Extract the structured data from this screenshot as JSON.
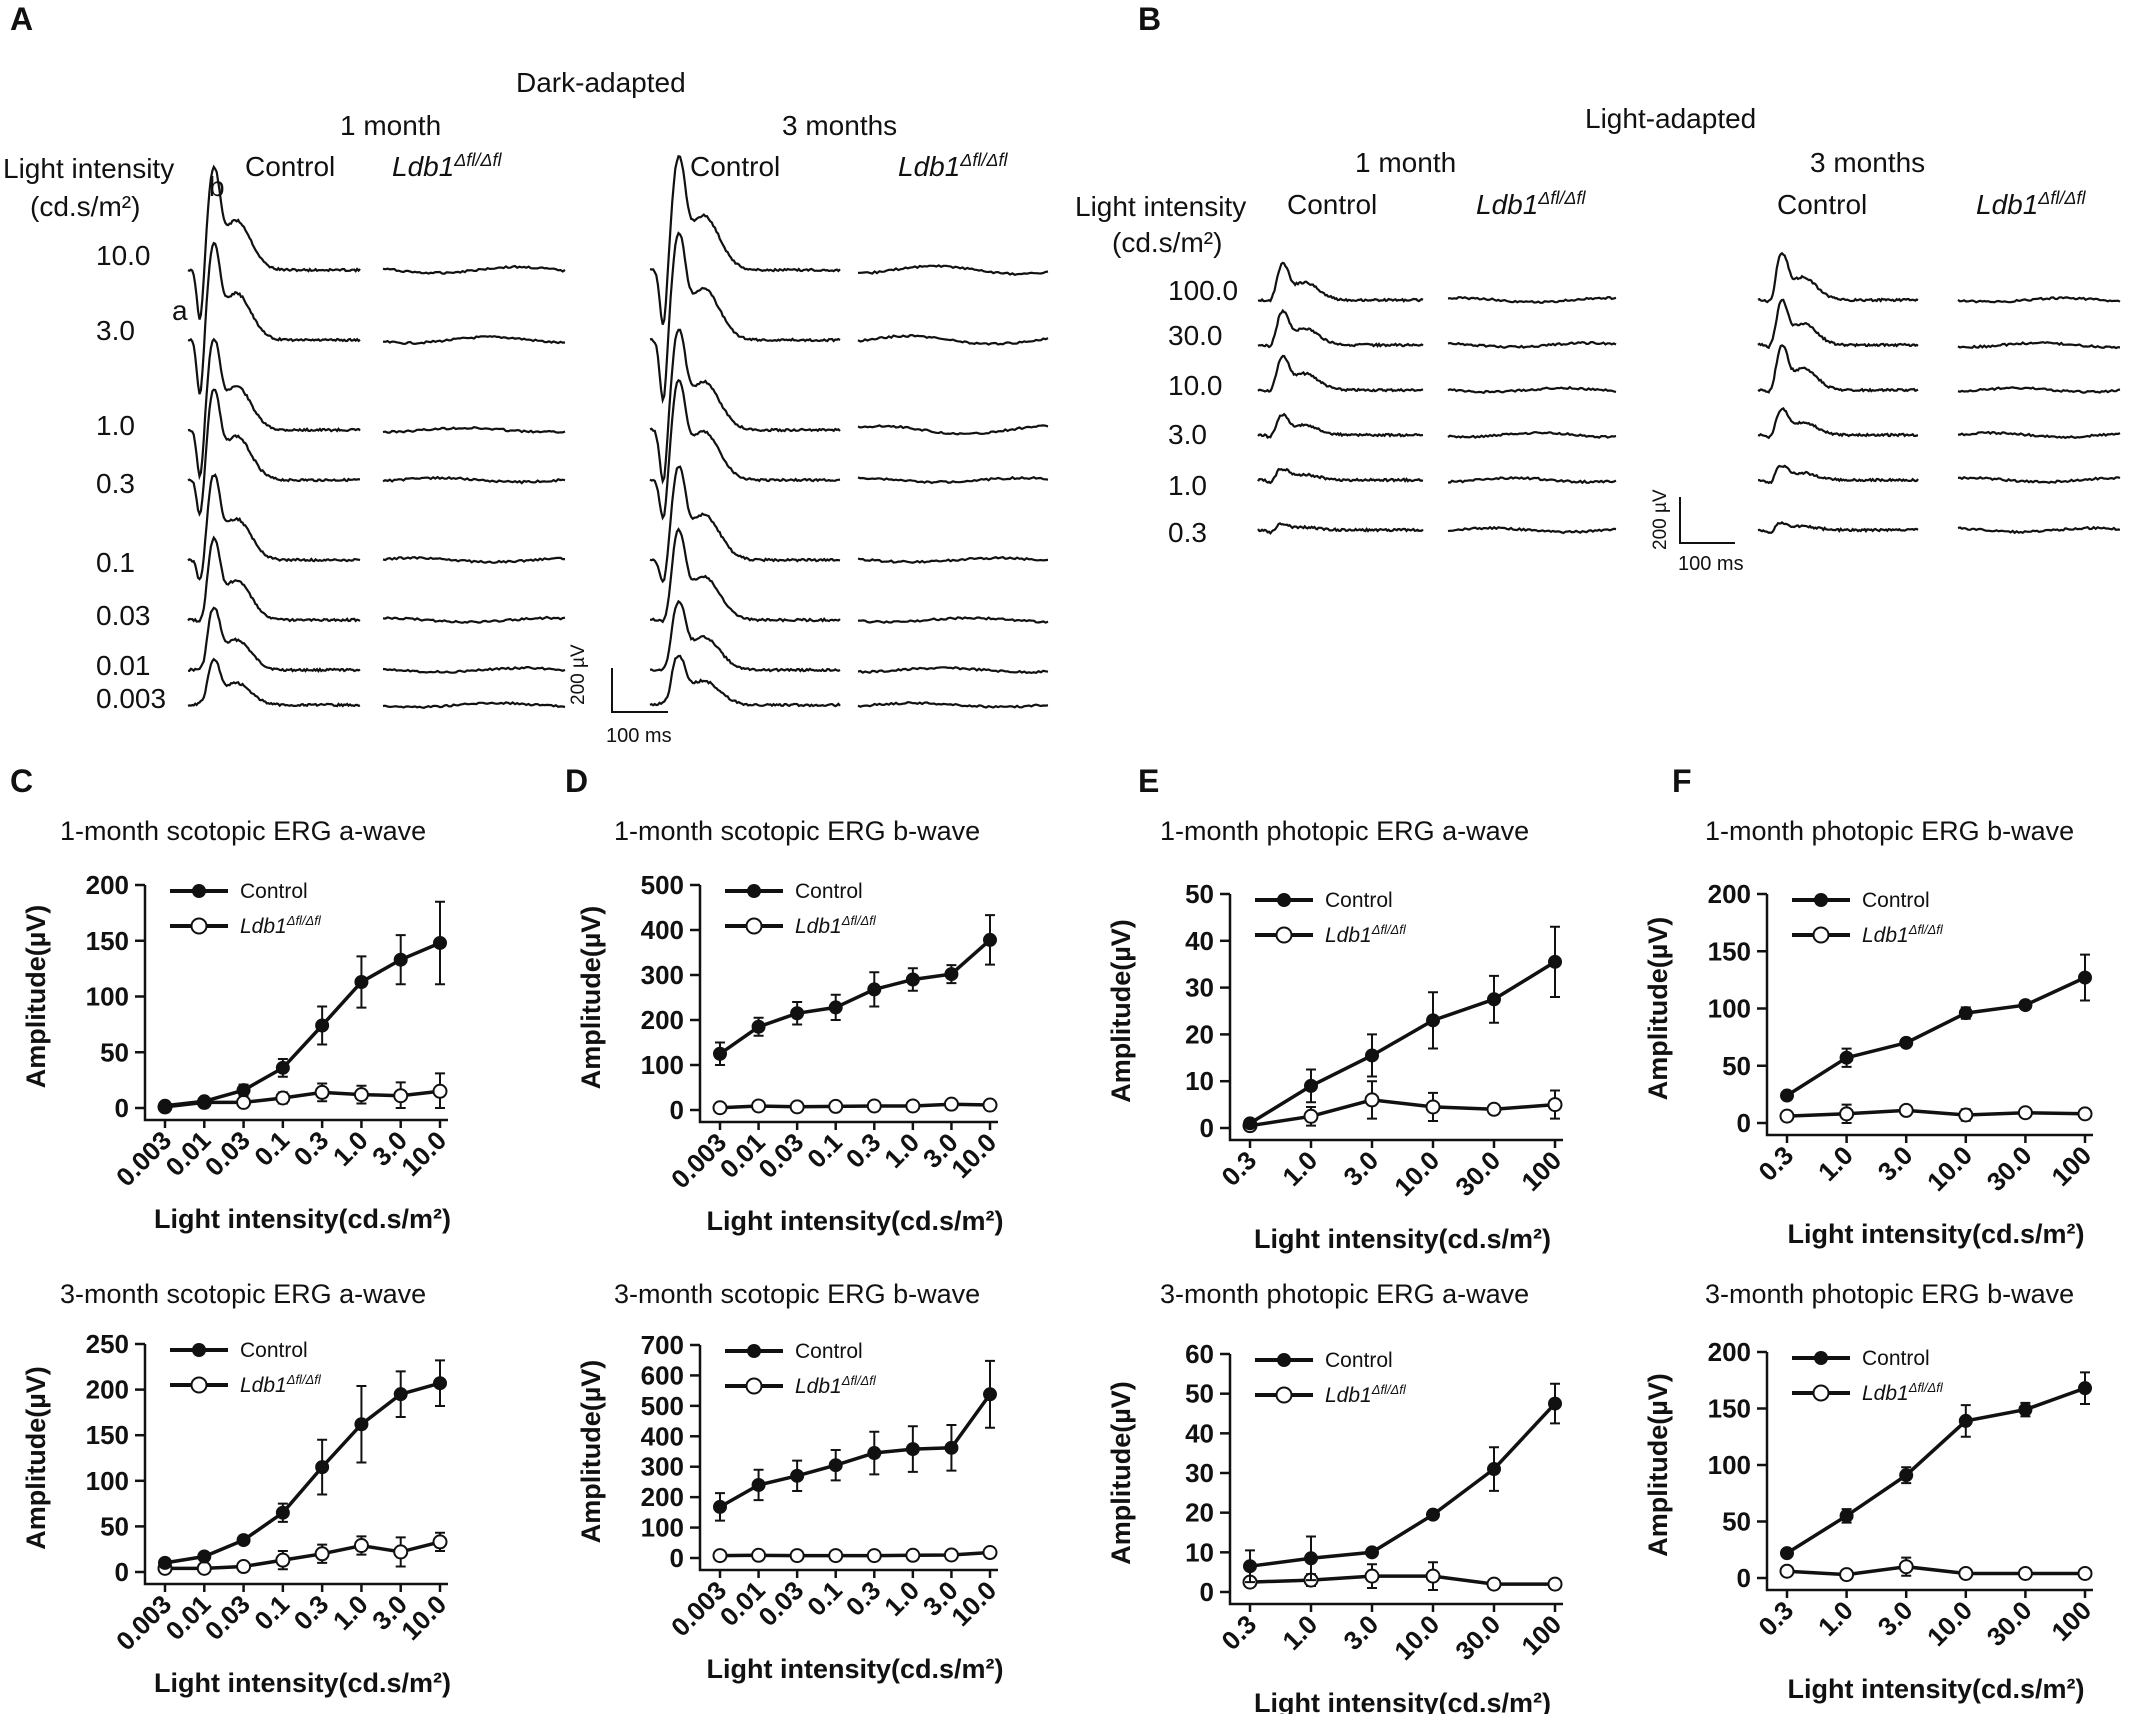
{
  "panel_labels": [
    "A",
    "B",
    "C",
    "D",
    "E",
    "F"
  ],
  "panel_a": {
    "condition": "Dark-adapted",
    "timepoints": [
      "1 month",
      "3 months"
    ],
    "group_control": "Control",
    "group_mutant_main": "Ldb1",
    "group_mutant_sup": "Δfl/Δfl",
    "intensity_label_line1": "Light intensity",
    "intensity_label_line2": "(cd.s/m²)",
    "intensities": [
      "10.0",
      "3.0",
      "1.0",
      "0.3",
      "0.1",
      "0.03",
      "0.01",
      "0.003"
    ],
    "wave_a": "a",
    "wave_b": "b",
    "scale_v": "200 µV",
    "scale_t": "100 ms"
  },
  "panel_b": {
    "condition": "Light-adapted",
    "timepoints": [
      "1 month",
      "3 months"
    ],
    "group_control": "Control",
    "group_mutant_main": "Ldb1",
    "group_mutant_sup": "Δfl/Δfl",
    "intensity_label_line1": "Light intensity",
    "intensity_label_line2": "(cd.s/m²)",
    "intensities": [
      "100.0",
      "30.0",
      "10.0",
      "3.0",
      "1.0",
      "0.3"
    ],
    "scale_v": "200 µV",
    "scale_t": "100 ms"
  },
  "legend": {
    "control": "Control",
    "mutant_main": "Ldb1",
    "mutant_sup": "Δfl/Δfl"
  },
  "chart_data": [
    {
      "id": "C1",
      "type": "line",
      "title": "1-month scotopic ERG a-wave",
      "xlabel": "Light intensity(cd.s/m²)",
      "ylabel": "Amplitude(µV)",
      "categories": [
        "0.003",
        "0.01",
        "0.03",
        "0.1",
        "0.3",
        "1.0",
        "3.0",
        "10.0"
      ],
      "yticks": [
        0,
        50,
        100,
        150,
        200
      ],
      "ylim": [
        0,
        200
      ],
      "series": [
        {
          "name": "Control",
          "values": [
            2,
            6,
            16,
            36,
            74,
            113,
            133,
            148
          ],
          "errors": [
            2,
            3,
            5,
            8,
            17,
            23,
            22,
            37
          ]
        },
        {
          "name": "Ldb1 Δfl/Δfl",
          "values": [
            1,
            5,
            5,
            9,
            14,
            12,
            11,
            15
          ],
          "errors": [
            1,
            2,
            2,
            5,
            8,
            8,
            12,
            16
          ]
        }
      ]
    },
    {
      "id": "D1",
      "type": "line",
      "title": "1-month scotopic ERG b-wave",
      "xlabel": "Light intensity(cd.s/m²)",
      "ylabel": "Amplitude(µV)",
      "categories": [
        "0.003",
        "0.01",
        "0.03",
        "0.1",
        "0.3",
        "1.0",
        "3.0",
        "10.0"
      ],
      "yticks": [
        0,
        100,
        200,
        300,
        400,
        500
      ],
      "ylim": [
        0,
        500
      ],
      "series": [
        {
          "name": "Control",
          "values": [
            125,
            185,
            215,
            228,
            268,
            290,
            302,
            378
          ],
          "errors": [
            25,
            20,
            25,
            28,
            38,
            25,
            20,
            55
          ]
        },
        {
          "name": "Ldb1 Δfl/Δfl",
          "values": [
            5,
            9,
            7,
            8,
            9,
            9,
            13,
            11
          ],
          "errors": [
            3,
            4,
            3,
            3,
            3,
            3,
            4,
            4
          ]
        }
      ]
    },
    {
      "id": "E1",
      "type": "line",
      "title": "1-month photopic ERG a-wave",
      "xlabel": "Light intensity(cd.s/m²)",
      "ylabel": "Amplitude(µV)",
      "categories": [
        "0.3",
        "1.0",
        "3.0",
        "10.0",
        "30.0",
        "100"
      ],
      "yticks": [
        0,
        10,
        20,
        30,
        40,
        50
      ],
      "ylim": [
        0,
        50
      ],
      "series": [
        {
          "name": "Control",
          "values": [
            1,
            9,
            15.5,
            23,
            27.5,
            35.5
          ],
          "errors": [
            0.5,
            3.5,
            4.5,
            6,
            5,
            7.5
          ]
        },
        {
          "name": "Ldb1 Δfl/Δfl",
          "values": [
            0.5,
            2.5,
            6,
            4.5,
            4,
            5
          ],
          "errors": [
            0.5,
            2,
            4,
            3,
            0.5,
            3
          ]
        }
      ]
    },
    {
      "id": "F1",
      "type": "line",
      "title": "1-month photopic ERG b-wave",
      "xlabel": "Light intensity(cd.s/m²)",
      "ylabel": "Amplitude(µV)",
      "categories": [
        "0.3",
        "1.0",
        "3.0",
        "10.0",
        "30.0",
        "100"
      ],
      "yticks": [
        0,
        50,
        100,
        150,
        200
      ],
      "ylim": [
        0,
        200
      ],
      "series": [
        {
          "name": "Control",
          "values": [
            24,
            57,
            70,
            96,
            103,
            127
          ],
          "errors": [
            2,
            8,
            3,
            5,
            2,
            20
          ]
        },
        {
          "name": "Ldb1 Δfl/Δfl",
          "values": [
            6,
            8,
            11,
            7,
            9,
            8
          ],
          "errors": [
            3,
            8,
            2,
            5,
            2,
            2
          ]
        }
      ]
    },
    {
      "id": "C2",
      "type": "line",
      "title": "3-month scotopic ERG a-wave",
      "xlabel": "Light intensity(cd.s/m²)",
      "ylabel": "Amplitude(µV)",
      "categories": [
        "0.003",
        "0.01",
        "0.03",
        "0.1",
        "0.3",
        "1.0",
        "3.0",
        "10.0"
      ],
      "yticks": [
        0,
        50,
        100,
        150,
        200,
        250
      ],
      "ylim": [
        0,
        250
      ],
      "series": [
        {
          "name": "Control",
          "values": [
            10,
            17,
            35,
            65,
            115,
            162,
            195,
            207
          ],
          "errors": [
            3,
            4,
            4,
            10,
            30,
            42,
            25,
            25
          ]
        },
        {
          "name": "Ldb1 Δfl/Δfl",
          "values": [
            4,
            4,
            6,
            13,
            20,
            29,
            22,
            33
          ],
          "errors": [
            2,
            2,
            3,
            10,
            10,
            10,
            16,
            10
          ]
        }
      ]
    },
    {
      "id": "D2",
      "type": "line",
      "title": "3-month scotopic ERG b-wave",
      "xlabel": "Light intensity(cd.s/m²)",
      "ylabel": "Amplitude(µV)",
      "categories": [
        "0.003",
        "0.01",
        "0.03",
        "0.1",
        "0.3",
        "1.0",
        "3.0",
        "10.0"
      ],
      "yticks": [
        0,
        100,
        200,
        300,
        400,
        500,
        600,
        700
      ],
      "ylim": [
        0,
        700
      ],
      "series": [
        {
          "name": "Control",
          "values": [
            168,
            240,
            270,
            305,
            345,
            358,
            362,
            538
          ],
          "errors": [
            45,
            50,
            50,
            50,
            70,
            75,
            75,
            110
          ]
        },
        {
          "name": "Ldb1 Δfl/Δfl",
          "values": [
            8,
            9,
            8,
            8,
            8,
            9,
            10,
            18
          ],
          "errors": [
            3,
            3,
            3,
            3,
            3,
            3,
            3,
            6
          ]
        }
      ]
    },
    {
      "id": "E2",
      "type": "line",
      "title": "3-month photopic ERG a-wave",
      "xlabel": "Light intensity(cd.s/m²)",
      "ylabel": "Amplitude(µV)",
      "categories": [
        "0.3",
        "1.0",
        "3.0",
        "10.0",
        "30.0",
        "100"
      ],
      "yticks": [
        0,
        10,
        20,
        30,
        40,
        50,
        60
      ],
      "ylim": [
        0,
        60
      ],
      "series": [
        {
          "name": "Control",
          "values": [
            6.5,
            8.5,
            10,
            19.5,
            31,
            47.5
          ],
          "errors": [
            4,
            5.5,
            0.5,
            1,
            5.5,
            5
          ]
        },
        {
          "name": "Ldb1 Δfl/Δfl",
          "values": [
            2.5,
            3,
            4,
            4,
            2,
            2
          ],
          "errors": [
            1,
            1.5,
            3,
            3.5,
            1,
            1
          ]
        }
      ]
    },
    {
      "id": "F2",
      "type": "line",
      "title": "3-month photopic ERG b-wave",
      "xlabel": "Light intensity(cd.s/m²)",
      "ylabel": "Amplitude(µV)",
      "categories": [
        "0.3",
        "1.0",
        "3.0",
        "10.0",
        "30.0",
        "100"
      ],
      "yticks": [
        0,
        50,
        100,
        150,
        200
      ],
      "ylim": [
        0,
        200
      ],
      "series": [
        {
          "name": "Control",
          "values": [
            22,
            55,
            91,
            139,
            149,
            168
          ],
          "errors": [
            2,
            6,
            7,
            14,
            6,
            14
          ]
        },
        {
          "name": "Ldb1 Δfl/Δfl",
          "values": [
            6,
            3,
            10,
            4,
            4,
            4
          ],
          "errors": [
            4,
            1,
            8,
            2,
            1,
            1
          ]
        }
      ]
    }
  ]
}
